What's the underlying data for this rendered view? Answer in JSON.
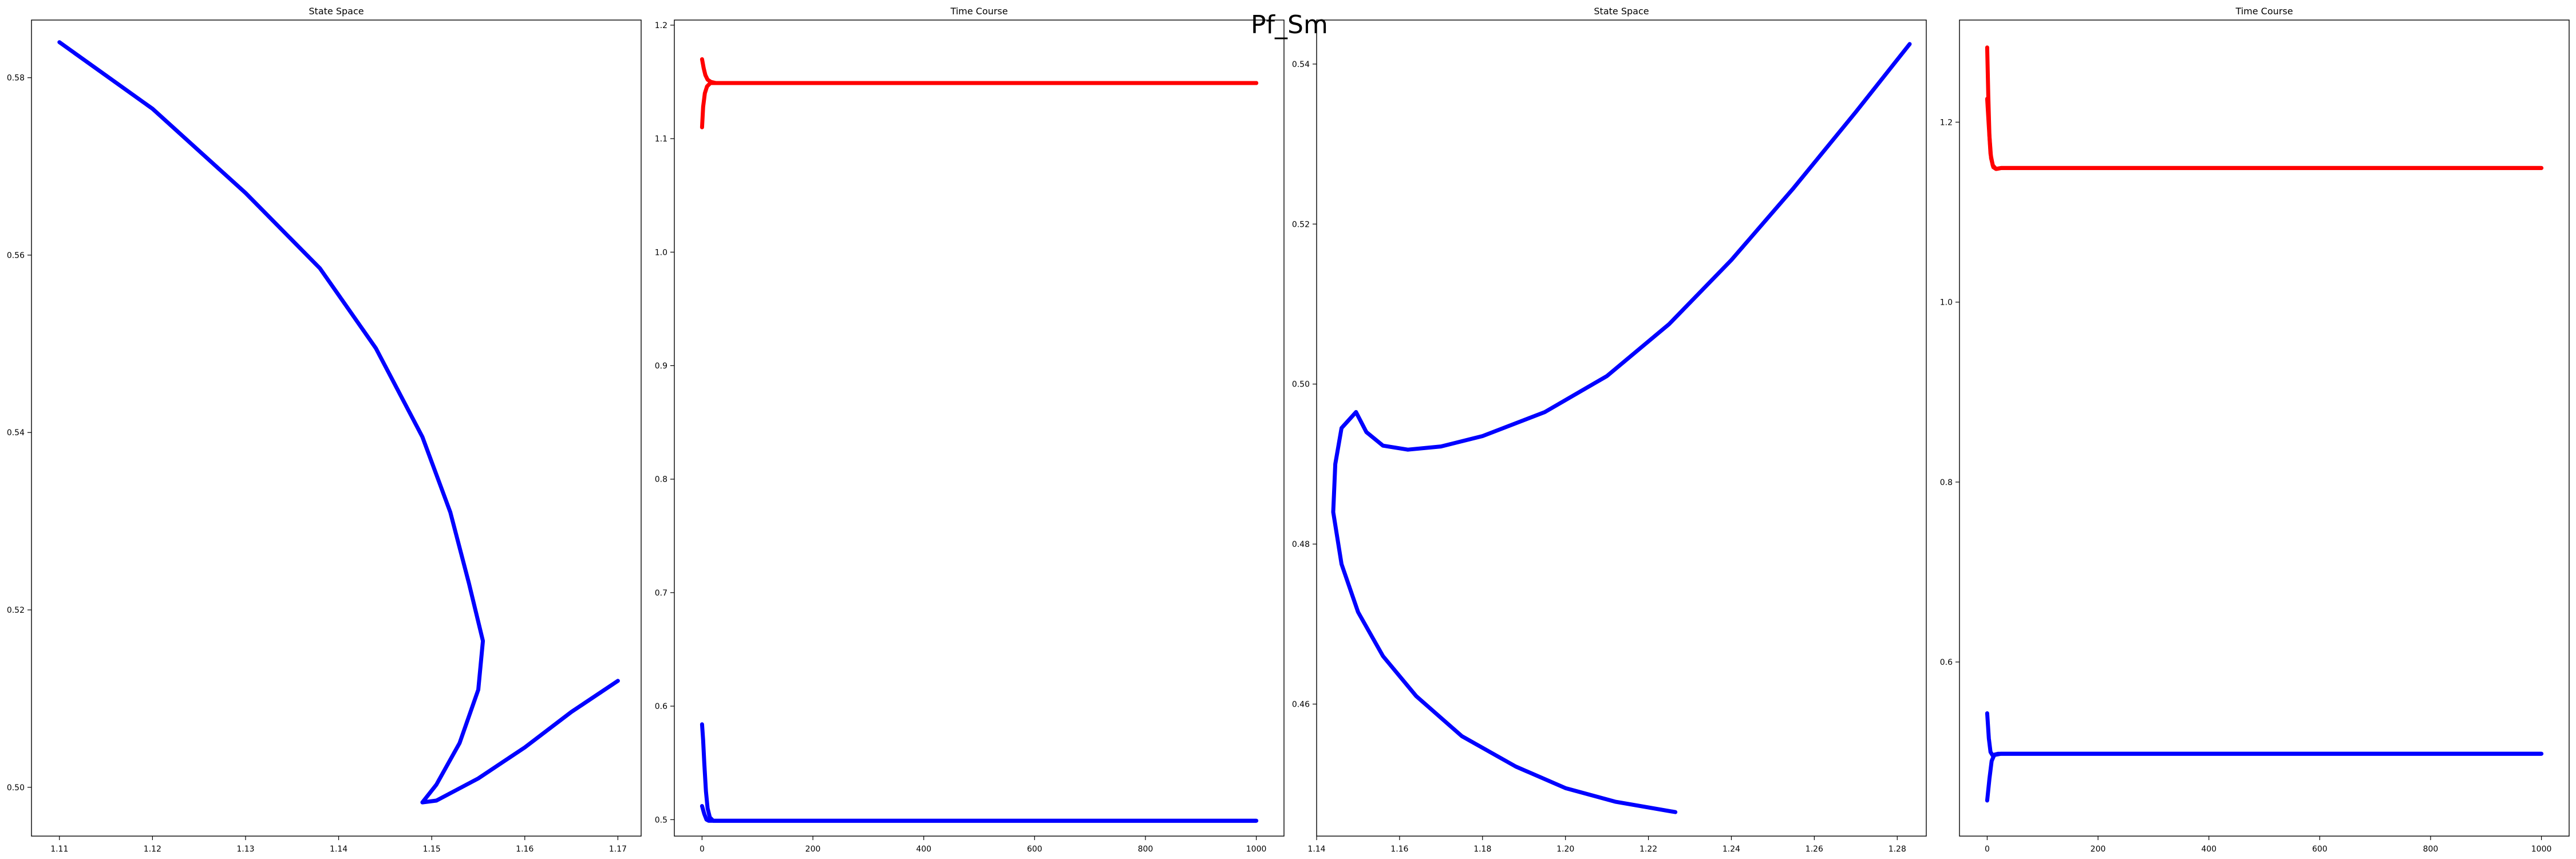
{
  "figure": {
    "suptitle": "Pf_Sm"
  },
  "chart_data": [
    {
      "type": "line",
      "title": "State Space",
      "xlabel": "",
      "ylabel": "",
      "xlim": [
        1.107,
        1.1725
      ],
      "ylim": [
        0.4945,
        0.5865
      ],
      "xticks": [
        1.11,
        1.12,
        1.13,
        1.14,
        1.15,
        1.16,
        1.17
      ],
      "yticks": [
        0.5,
        0.52,
        0.54,
        0.56,
        0.58
      ],
      "x_tick_labels": [
        "1.11",
        "1.12",
        "1.13",
        "1.14",
        "1.15",
        "1.16",
        "1.17"
      ],
      "y_tick_labels": [
        "0.50",
        "0.52",
        "0.54",
        "0.56",
        "0.58"
      ],
      "grid": false,
      "series": [
        {
          "color": "#0000ff",
          "points": [
            [
              1.11,
              0.584
            ],
            [
              1.12,
              0.5765
            ],
            [
              1.13,
              0.567
            ],
            [
              1.138,
              0.5585
            ],
            [
              1.144,
              0.5495
            ],
            [
              1.149,
              0.5395
            ],
            [
              1.152,
              0.531
            ],
            [
              1.154,
              0.523
            ],
            [
              1.1555,
              0.5165
            ],
            [
              1.155,
              0.511
            ],
            [
              1.153,
              0.505
            ],
            [
              1.1505,
              0.5003
            ],
            [
              1.149,
              0.4983
            ],
            [
              1.1505,
              0.4985
            ],
            [
              1.155,
              0.501
            ],
            [
              1.16,
              0.5045
            ],
            [
              1.165,
              0.5085
            ],
            [
              1.17,
              0.512
            ]
          ]
        }
      ]
    },
    {
      "type": "line",
      "title": "Time Course",
      "xlabel": "",
      "ylabel": "",
      "xlim": [
        -50,
        1050
      ],
      "ylim": [
        0.4855,
        1.2045
      ],
      "xticks": [
        0,
        200,
        400,
        600,
        800,
        1000
      ],
      "yticks": [
        0.5,
        0.6,
        0.7,
        0.8,
        0.9,
        1.0,
        1.1,
        1.2
      ],
      "x_tick_labels": [
        "0",
        "200",
        "400",
        "600",
        "800",
        "1000"
      ],
      "y_tick_labels": [
        "0.5",
        "0.6",
        "0.7",
        "0.8",
        "0.9",
        "1.0",
        "1.1",
        "1.2"
      ],
      "grid": false,
      "series": [
        {
          "color": "#ff0000",
          "points": [
            [
              0,
              1.17
            ],
            [
              3,
              1.162
            ],
            [
              6,
              1.156
            ],
            [
              10,
              1.152
            ],
            [
              16,
              1.15
            ],
            [
              25,
              1.149
            ],
            [
              1000,
              1.149
            ]
          ]
        },
        {
          "color": "#ff0000",
          "points": [
            [
              0,
              1.11
            ],
            [
              2,
              1.128
            ],
            [
              5,
              1.14
            ],
            [
              9,
              1.146
            ],
            [
              15,
              1.149
            ],
            [
              25,
              1.149
            ],
            [
              1000,
              1.149
            ]
          ]
        },
        {
          "color": "#0000ff",
          "points": [
            [
              0,
              0.584
            ],
            [
              2,
              0.57
            ],
            [
              4,
              0.55
            ],
            [
              7,
              0.525
            ],
            [
              10,
              0.51
            ],
            [
              14,
              0.502
            ],
            [
              20,
              0.499
            ],
            [
              30,
              0.499
            ],
            [
              1000,
              0.499
            ]
          ]
        },
        {
          "color": "#0000ff",
          "points": [
            [
              0,
              0.512
            ],
            [
              4,
              0.505
            ],
            [
              8,
              0.5
            ],
            [
              12,
              0.499
            ],
            [
              20,
              0.499
            ],
            [
              1000,
              0.499
            ]
          ]
        }
      ]
    },
    {
      "type": "line",
      "title": "State Space",
      "xlabel": "",
      "ylabel": "",
      "xlim": [
        1.14,
        1.287
      ],
      "ylim": [
        0.4435,
        0.5455
      ],
      "xticks": [
        1.14,
        1.16,
        1.18,
        1.2,
        1.22,
        1.24,
        1.26,
        1.28
      ],
      "yticks": [
        0.46,
        0.48,
        0.5,
        0.52,
        0.54
      ],
      "x_tick_labels": [
        "1.14",
        "1.16",
        "1.18",
        "1.20",
        "1.22",
        "1.24",
        "1.26",
        "1.28"
      ],
      "y_tick_labels": [
        "0.46",
        "0.48",
        "0.50",
        "0.52",
        "0.54"
      ],
      "grid": false,
      "series": [
        {
          "color": "#0000ff",
          "points": [
            [
              1.283,
              0.5425
            ],
            [
              1.27,
              0.534
            ],
            [
              1.255,
              0.5245
            ],
            [
              1.24,
              0.5155
            ],
            [
              1.225,
              0.5075
            ],
            [
              1.21,
              0.501
            ],
            [
              1.195,
              0.4965
            ],
            [
              1.18,
              0.4935
            ],
            [
              1.17,
              0.4922
            ],
            [
              1.162,
              0.4918
            ],
            [
              1.156,
              0.4923
            ],
            [
              1.152,
              0.494
            ],
            [
              1.1495,
              0.4965
            ]
          ]
        },
        {
          "color": "#0000ff",
          "points": [
            [
              1.1495,
              0.4965
            ],
            [
              1.146,
              0.4945
            ],
            [
              1.1445,
              0.49
            ],
            [
              1.144,
              0.484
            ],
            [
              1.146,
              0.4775
            ],
            [
              1.15,
              0.4715
            ],
            [
              1.156,
              0.466
            ],
            [
              1.164,
              0.461
            ],
            [
              1.175,
              0.456
            ],
            [
              1.188,
              0.4522
            ],
            [
              1.2,
              0.4495
            ],
            [
              1.212,
              0.4478
            ],
            [
              1.2265,
              0.4465
            ]
          ]
        }
      ]
    },
    {
      "type": "line",
      "title": "Time Course",
      "xlabel": "",
      "ylabel": "",
      "xlim": [
        -50,
        1050
      ],
      "ylim": [
        0.4065,
        1.3135
      ],
      "xticks": [
        0,
        200,
        400,
        600,
        800,
        1000
      ],
      "yticks": [
        0.6,
        0.8,
        1.0,
        1.2
      ],
      "x_tick_labels": [
        "0",
        "200",
        "400",
        "600",
        "800",
        "1000"
      ],
      "y_tick_labels": [
        "0.6",
        "0.8",
        "1.0",
        "1.2"
      ],
      "grid": false,
      "series": [
        {
          "color": "#ff0000",
          "points": [
            [
              0,
              1.283
            ],
            [
              2,
              1.23
            ],
            [
              4,
              1.185
            ],
            [
              7,
              1.16
            ],
            [
              11,
              1.15
            ],
            [
              16,
              1.148
            ],
            [
              25,
              1.149
            ],
            [
              1000,
              1.149
            ]
          ]
        },
        {
          "color": "#ff0000",
          "points": [
            [
              0,
              1.226
            ],
            [
              3,
              1.195
            ],
            [
              6,
              1.165
            ],
            [
              10,
              1.152
            ],
            [
              16,
              1.148
            ],
            [
              25,
              1.149
            ],
            [
              1000,
              1.149
            ]
          ]
        },
        {
          "color": "#0000ff",
          "points": [
            [
              0,
              0.543
            ],
            [
              3,
              0.515
            ],
            [
              6,
              0.5
            ],
            [
              10,
              0.496
            ],
            [
              16,
              0.497
            ],
            [
              25,
              0.498
            ],
            [
              1000,
              0.498
            ]
          ]
        },
        {
          "color": "#0000ff",
          "points": [
            [
              0,
              0.446
            ],
            [
              4,
              0.47
            ],
            [
              8,
              0.49
            ],
            [
              13,
              0.497
            ],
            [
              20,
              0.498
            ],
            [
              1000,
              0.498
            ]
          ]
        }
      ]
    }
  ]
}
